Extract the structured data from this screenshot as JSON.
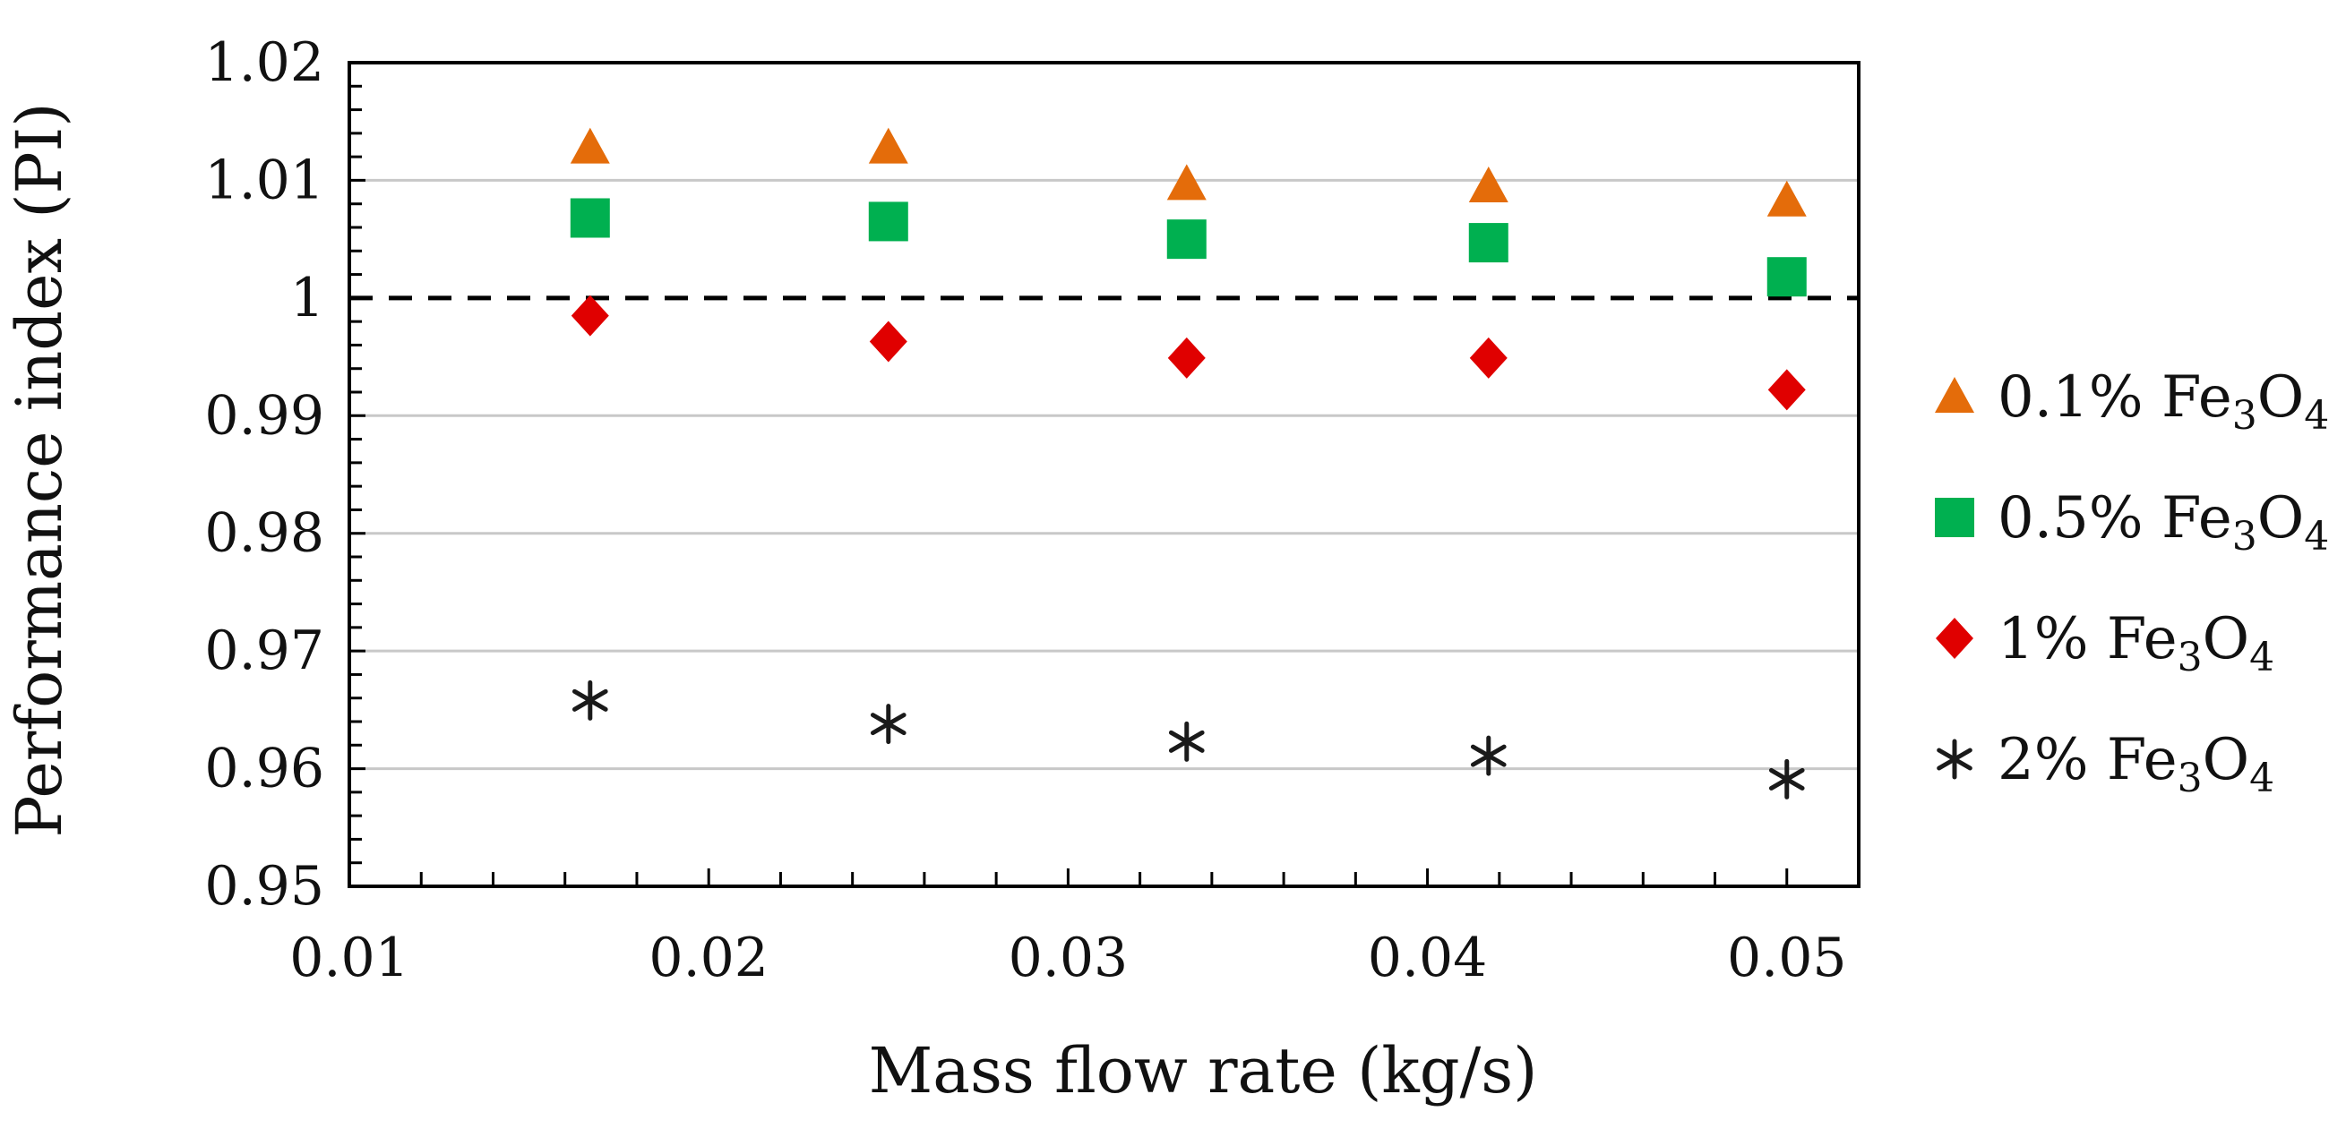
{
  "chart_data": {
    "type": "scatter",
    "title": "",
    "xlabel": "Mass flow rate (kg/s)",
    "ylabel": "Performance index (PI)",
    "xlim": [
      0.01,
      0.052
    ],
    "ylim": [
      0.95,
      1.02
    ],
    "x_ticks": [
      0.01,
      0.02,
      0.03,
      0.04,
      0.05
    ],
    "x_tick_labels": [
      "0.01",
      "0.02",
      "0.03",
      "0.04",
      "0.05"
    ],
    "y_ticks": [
      0.95,
      0.96,
      0.97,
      0.98,
      0.99,
      1.0,
      1.01,
      1.02
    ],
    "y_tick_labels": [
      "0.95",
      "0.96",
      "0.97",
      "0.98",
      "0.99",
      "1",
      "1.01",
      "1.02"
    ],
    "grid": "horizontal",
    "reference_line": {
      "y": 1.0,
      "style": "dashed",
      "color": "#000000"
    },
    "legend_position": "right",
    "x": [
      0.0167,
      0.025,
      0.0333,
      0.0417,
      0.05
    ],
    "series": [
      {
        "name": "0.1% Fe3O4",
        "label_pre": "0.1% Fe",
        "label_sub1": "3",
        "label_mid": "O",
        "label_sub2": "4",
        "marker": "triangle",
        "color": "#E46C0A",
        "values": [
          1.0128,
          1.0128,
          1.0097,
          1.0095,
          1.0083
        ]
      },
      {
        "name": "0.5% Fe3O4",
        "label_pre": "0.5% Fe",
        "label_sub1": "3",
        "label_mid": "O",
        "label_sub2": "4",
        "marker": "square",
        "color": "#00B050",
        "values": [
          1.0068,
          1.0065,
          1.005,
          1.0047,
          1.0018
        ]
      },
      {
        "name": "1% Fe3O4",
        "label_pre": "1% Fe",
        "label_sub1": "3",
        "label_mid": "O",
        "label_sub2": "4",
        "marker": "diamond",
        "color": "#E00000",
        "values": [
          0.9985,
          0.9963,
          0.9949,
          0.9949,
          0.9922
        ]
      },
      {
        "name": "2% Fe3O4",
        "label_pre": "2% Fe",
        "label_sub1": "3",
        "label_mid": "O",
        "label_sub2": "4",
        "marker": "asterisk",
        "color": "#1a1a1a",
        "values": [
          0.9658,
          0.9638,
          0.9623,
          0.9611,
          0.9591
        ]
      }
    ]
  }
}
